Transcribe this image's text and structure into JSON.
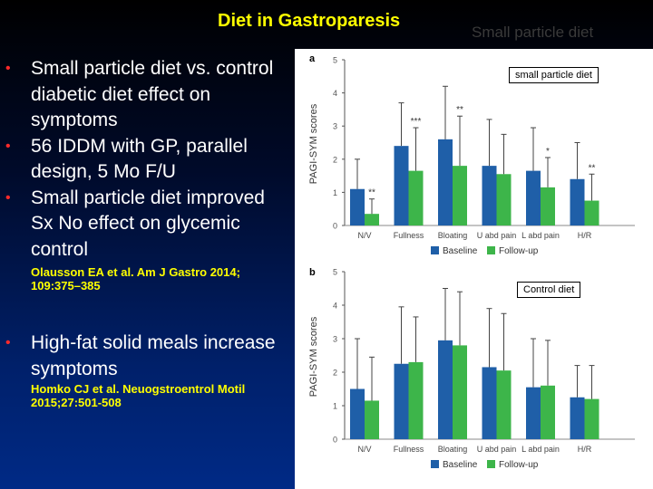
{
  "slide": {
    "title": "Diet in Gastroparesis",
    "ghost_title": "Small particle diet",
    "bullets_group1": [
      "Small particle diet vs. control diabetic diet effect on symptoms",
      "56 IDDM with GP, parallel design, 5 Mo F/U",
      "Small particle diet improved Sx No effect on glycemic control"
    ],
    "ref1": "Olausson EA et al. Am J Gastro 2014; 109:375–385",
    "bullets_group2": [
      "High-fat solid meals increase symptoms"
    ],
    "ref2": "Homko CJ et al. Neuogstroentrol Motil 2015;27:501-508",
    "bullet_symbol": "•",
    "colors": {
      "title": "#ffff00",
      "text": "#ffffff",
      "bullet": "#ff2a2a",
      "ref": "#ffff00"
    }
  },
  "chart_labels": {
    "a_box": "small particle diet",
    "b_box": "Control diet"
  },
  "chart_data": [
    {
      "type": "bar",
      "panel": "a",
      "ylabel": "PAGI-SYM scores",
      "ylim": [
        0,
        5
      ],
      "yticks": [
        0,
        1,
        2,
        3,
        4,
        5
      ],
      "categories": [
        "N/V",
        "Fullness",
        "Bloating",
        "U abd pain",
        "L abd pain",
        "H/R"
      ],
      "series": [
        {
          "name": "Baseline",
          "color": "#1f5fa8",
          "values": [
            1.1,
            2.4,
            2.6,
            1.8,
            1.65,
            1.4
          ],
          "err": [
            0.9,
            1.3,
            1.6,
            1.4,
            1.3,
            1.1
          ]
        },
        {
          "name": "Follow-up",
          "color": "#3db54a",
          "values": [
            0.35,
            1.65,
            1.8,
            1.55,
            1.15,
            0.75
          ],
          "err": [
            0.45,
            1.3,
            1.5,
            1.2,
            0.9,
            0.8
          ]
        }
      ],
      "annotations": [
        "**",
        "***",
        "**",
        "",
        "*",
        "**"
      ],
      "legend": "bottom"
    },
    {
      "type": "bar",
      "panel": "b",
      "ylabel": "PAGI-SYM scores",
      "ylim": [
        0,
        5
      ],
      "yticks": [
        0,
        1,
        2,
        3,
        4,
        5
      ],
      "categories": [
        "N/V",
        "Fullness",
        "Bloating",
        "U abd pain",
        "L abd pain",
        "H/R"
      ],
      "series": [
        {
          "name": "Baseline",
          "color": "#1f5fa8",
          "values": [
            1.5,
            2.25,
            2.95,
            2.15,
            1.55,
            1.25
          ],
          "err": [
            1.5,
            1.7,
            1.55,
            1.75,
            1.45,
            0.95
          ]
        },
        {
          "name": "Follow-up",
          "color": "#3db54a",
          "values": [
            1.15,
            2.3,
            2.8,
            2.05,
            1.6,
            1.2
          ],
          "err": [
            1.3,
            1.35,
            1.6,
            1.7,
            1.35,
            1.0
          ]
        }
      ],
      "annotations": [
        "",
        "",
        "",
        "",
        "",
        ""
      ],
      "legend": "bottom"
    }
  ]
}
